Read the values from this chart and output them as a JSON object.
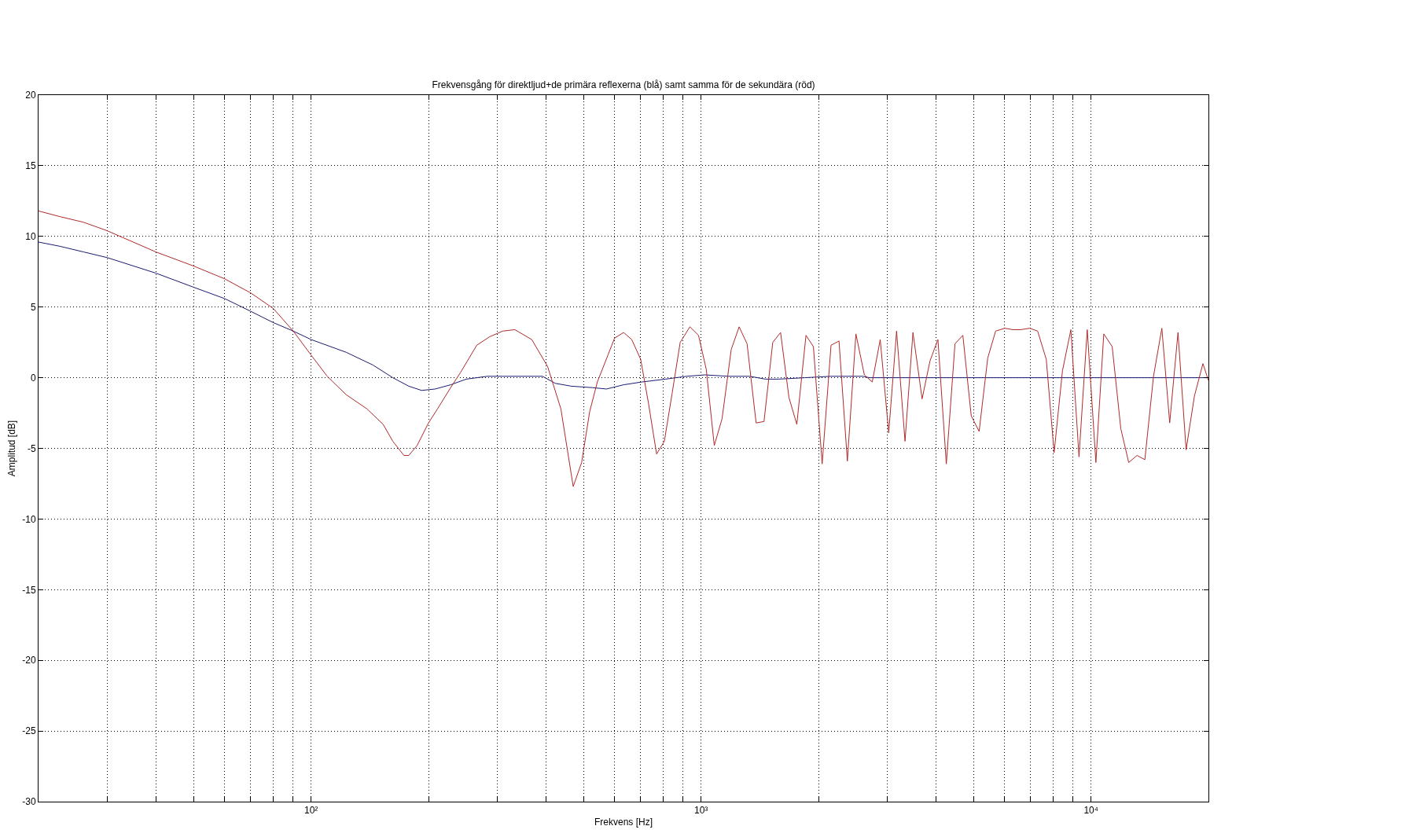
{
  "chart_data": {
    "type": "line",
    "title": "Frekvensgång för direktljud+de primära reflexerna (blå) samt samma för de sekundära (röd)",
    "xlabel": "Frekvens [Hz]",
    "ylabel": "Amplitud [dB]",
    "log": "x",
    "grid": true,
    "line_style": "solid",
    "xlim": [
      20,
      20000
    ],
    "xticks": [
      {
        "value": 30,
        "label": null
      },
      {
        "value": 40,
        "label": null
      },
      {
        "value": 50,
        "label": null
      },
      {
        "value": 60,
        "label": null
      },
      {
        "value": 70,
        "label": null
      },
      {
        "value": 80,
        "label": null
      },
      {
        "value": 90,
        "label": null
      },
      {
        "value": 100,
        "label": "10²"
      },
      {
        "value": 200,
        "label": null
      },
      {
        "value": 300,
        "label": null
      },
      {
        "value": 400,
        "label": null
      },
      {
        "value": 500,
        "label": null
      },
      {
        "value": 600,
        "label": null
      },
      {
        "value": 700,
        "label": null
      },
      {
        "value": 800,
        "label": null
      },
      {
        "value": 900,
        "label": null
      },
      {
        "value": 1000,
        "label": "10³"
      },
      {
        "value": 2000,
        "label": null
      },
      {
        "value": 3000,
        "label": null
      },
      {
        "value": 4000,
        "label": null
      },
      {
        "value": 5000,
        "label": null
      },
      {
        "value": 6000,
        "label": null
      },
      {
        "value": 7000,
        "label": null
      },
      {
        "value": 8000,
        "label": null
      },
      {
        "value": 9000,
        "label": null
      },
      {
        "value": 10000,
        "label": "10⁴"
      }
    ],
    "ylim": [
      -30,
      20
    ],
    "yticks": [
      -30,
      -25,
      -20,
      -15,
      -10,
      -5,
      0,
      5,
      10,
      15,
      20
    ],
    "series": [
      {
        "color": "#1a1a72",
        "x": [
          20,
          22.7,
          26.1,
          30,
          40,
          50,
          60,
          70,
          80,
          90,
          100,
          123,
          144,
          162,
          178,
          192,
          208,
          228,
          250,
          283,
          310,
          374,
          392,
          423,
          465,
          526,
          572,
          633,
          706,
          811,
          918,
          1023,
          1177,
          1332,
          1462,
          1580,
          1845,
          2153,
          2600,
          2700,
          20000
        ],
        "values": [
          9.6,
          9.3,
          8.9,
          8.5,
          7.4,
          6.4,
          5.6,
          4.7,
          3.9,
          3.3,
          2.7,
          1.8,
          0.9,
          0.0,
          -0.6,
          -0.9,
          -0.8,
          -0.5,
          -0.1,
          0.1,
          0.1,
          0.1,
          0.1,
          -0.4,
          -0.6,
          -0.7,
          -0.8,
          -0.5,
          -0.3,
          -0.1,
          0.1,
          0.2,
          0.1,
          0.1,
          -0.1,
          -0.1,
          0.0,
          0.1,
          0.1,
          0.0,
          0.0
        ]
      },
      {
        "color": "#b02a2a",
        "x": [
          20,
          22.7,
          26.1,
          30,
          40,
          50,
          60,
          70,
          80,
          90,
          100,
          110,
          123,
          139,
          153,
          162,
          173,
          178,
          187,
          200,
          211,
          228,
          242,
          266,
          287,
          310,
          333,
          368,
          404,
          437,
          470,
          494,
          518,
          542,
          577,
          600,
          633,
          664,
          700,
          733,
          769,
          805,
          843,
          884,
          936,
          985,
          1031,
          1081,
          1132,
          1195,
          1252,
          1312,
          1384,
          1450,
          1527,
          1599,
          1680,
          1760,
          1858,
          1941,
          2044,
          2154,
          2258,
          2372,
          2495,
          2622,
          2748,
          2880,
          3028,
          3172,
          3334,
          3494,
          3688,
          3865,
          4049,
          4255,
          4478,
          4691,
          4929,
          5164,
          5434,
          5693,
          6012,
          6298,
          6597,
          6964,
          7295,
          7677,
          8041,
          8448,
          8878,
          9313,
          9778,
          10290,
          10780,
          11330,
          11920,
          12490,
          13120,
          13740,
          14460,
          15190,
          15910,
          16710,
          17530,
          18410,
          19360,
          20000
        ],
        "values": [
          11.8,
          11.4,
          11.0,
          10.4,
          8.9,
          7.9,
          7.0,
          6.0,
          4.9,
          3.3,
          1.6,
          0.1,
          -1.2,
          -2.2,
          -3.3,
          -4.5,
          -5.5,
          -5.5,
          -4.8,
          -3.2,
          -2.2,
          -0.7,
          0.4,
          2.3,
          2.9,
          3.3,
          3.4,
          2.7,
          0.8,
          -2.2,
          -7.7,
          -6.0,
          -2.4,
          -0.3,
          1.6,
          2.8,
          3.2,
          2.7,
          1.3,
          -1.8,
          -5.4,
          -4.5,
          -1.1,
          2.5,
          3.6,
          3.0,
          0.6,
          -4.8,
          -2.9,
          2.0,
          3.6,
          2.4,
          -3.2,
          -3.1,
          2.5,
          3.2,
          -1.4,
          -3.3,
          3.0,
          2.2,
          -6.1,
          2.3,
          2.6,
          -5.9,
          3.1,
          0.2,
          -0.3,
          2.7,
          -3.9,
          3.3,
          -4.5,
          3.2,
          -1.5,
          1.2,
          2.7,
          -6.1,
          2.4,
          3.0,
          -2.7,
          -3.8,
          1.4,
          3.3,
          3.5,
          3.4,
          3.4,
          3.5,
          3.3,
          1.3,
          -5.3,
          0.5,
          3.4,
          -5.6,
          3.4,
          -6.0,
          3.1,
          2.2,
          -3.6,
          -6.0,
          -5.5,
          -5.8,
          0.1,
          3.5,
          -3.2,
          3.2,
          -5.1,
          -1.3,
          1.0,
          -0.2
        ]
      }
    ]
  }
}
